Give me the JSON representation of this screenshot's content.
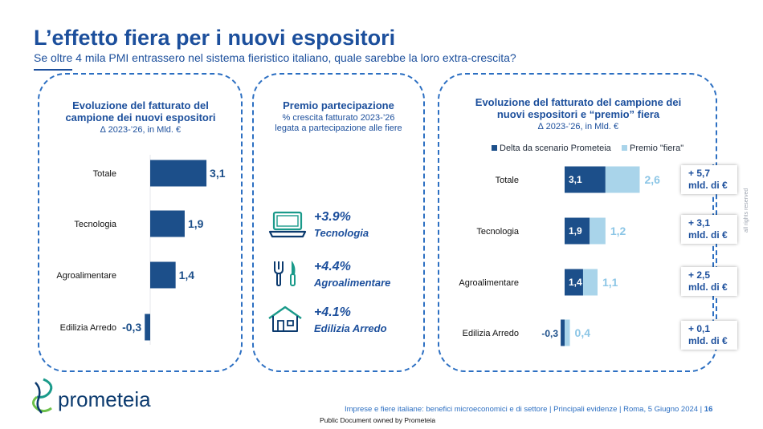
{
  "header": {
    "title": "L’effetto fiera per i nuovi espositori",
    "subtitle": "Se oltre 4 mila PMI entrassero nel sistema fieristico italiano, quale sarebbe la loro extra-crescita?"
  },
  "left_panel": {
    "title_line1": "Evoluzione del fatturato del",
    "title_line2": "campione dei nuovi espositori",
    "subtitle": "∆ 2023-’26, in Mld. €"
  },
  "mid_panel": {
    "title": "Premio partecipazione",
    "subtitle_line1": "% crescita fatturato 2023-’26",
    "subtitle_line2": "legata a partecipazione alle fiere",
    "items": [
      {
        "value": "+3.9%",
        "sector": "Tecnologia",
        "icon": "computer-icon"
      },
      {
        "value": "+4.4%",
        "sector": "Agroalimentare",
        "icon": "fork-knife-icon"
      },
      {
        "value": "+4.1%",
        "sector": "Edilizia Arredo",
        "icon": "house-icon"
      }
    ]
  },
  "right_panel": {
    "title_line1": "Evoluzione del fatturato del campione dei",
    "title_line2": "nuovi espositori e “premio” fiera",
    "subtitle": "∆ 2023-’26, in Mld. €",
    "totals": [
      {
        "line1": "+ 5,7",
        "line2": "mld. di €"
      },
      {
        "line1": "+ 3,1",
        "line2": "mld. di €"
      },
      {
        "line1": "+ 2,5",
        "line2": "mld. di €"
      },
      {
        "line1": "+ 0,1",
        "line2": "mld. di €"
      }
    ]
  },
  "chart_data": [
    {
      "type": "bar",
      "orientation": "horizontal",
      "title": "Evoluzione del fatturato del campione dei nuovi espositori",
      "subtitle": "∆ 2023-’26, in Mld. €",
      "categories": [
        "Totale",
        "Tecnologia",
        "Agroalimentare",
        "Edilizia Arredo"
      ],
      "values": [
        3.1,
        1.9,
        1.4,
        -0.3
      ],
      "labels": [
        "3,1",
        "1,9",
        "1,4",
        "-0,3"
      ],
      "xlim": [
        -0.3,
        3.1
      ],
      "colors": [
        "#1c4f8a"
      ]
    },
    {
      "type": "bar",
      "orientation": "horizontal",
      "stacked": true,
      "title": "Evoluzione del fatturato del campione dei nuovi espositori e “premio” fiera",
      "subtitle": "∆ 2023-’26, in Mld. €",
      "categories": [
        "Totale",
        "Tecnologia",
        "Agroalimentare",
        "Edilizia Arredo"
      ],
      "series": [
        {
          "name": "Delta da scenario Prometeia",
          "values": [
            3.1,
            1.9,
            1.4,
            -0.3
          ],
          "labels": [
            "3,1",
            "1,9",
            "1,4",
            "-0,3"
          ],
          "color": "#1c4f8a"
        },
        {
          "name": "Premio \"fiera\"",
          "values": [
            2.6,
            1.2,
            1.1,
            0.4
          ],
          "labels": [
            "2,6",
            "1,2",
            "1,1",
            "0,4"
          ],
          "color": "#a9d4ea"
        }
      ],
      "legend": "top"
    }
  ],
  "footer": {
    "logo": "prometeia",
    "text": "Imprese e fiere italiane: benefici microeconomici e di settore | Principali evidenze | Roma, 5 Giugno 2024 |",
    "page": "16",
    "public_note": "Public Document owned by Prometeia",
    "rights": "all rights reserved"
  }
}
